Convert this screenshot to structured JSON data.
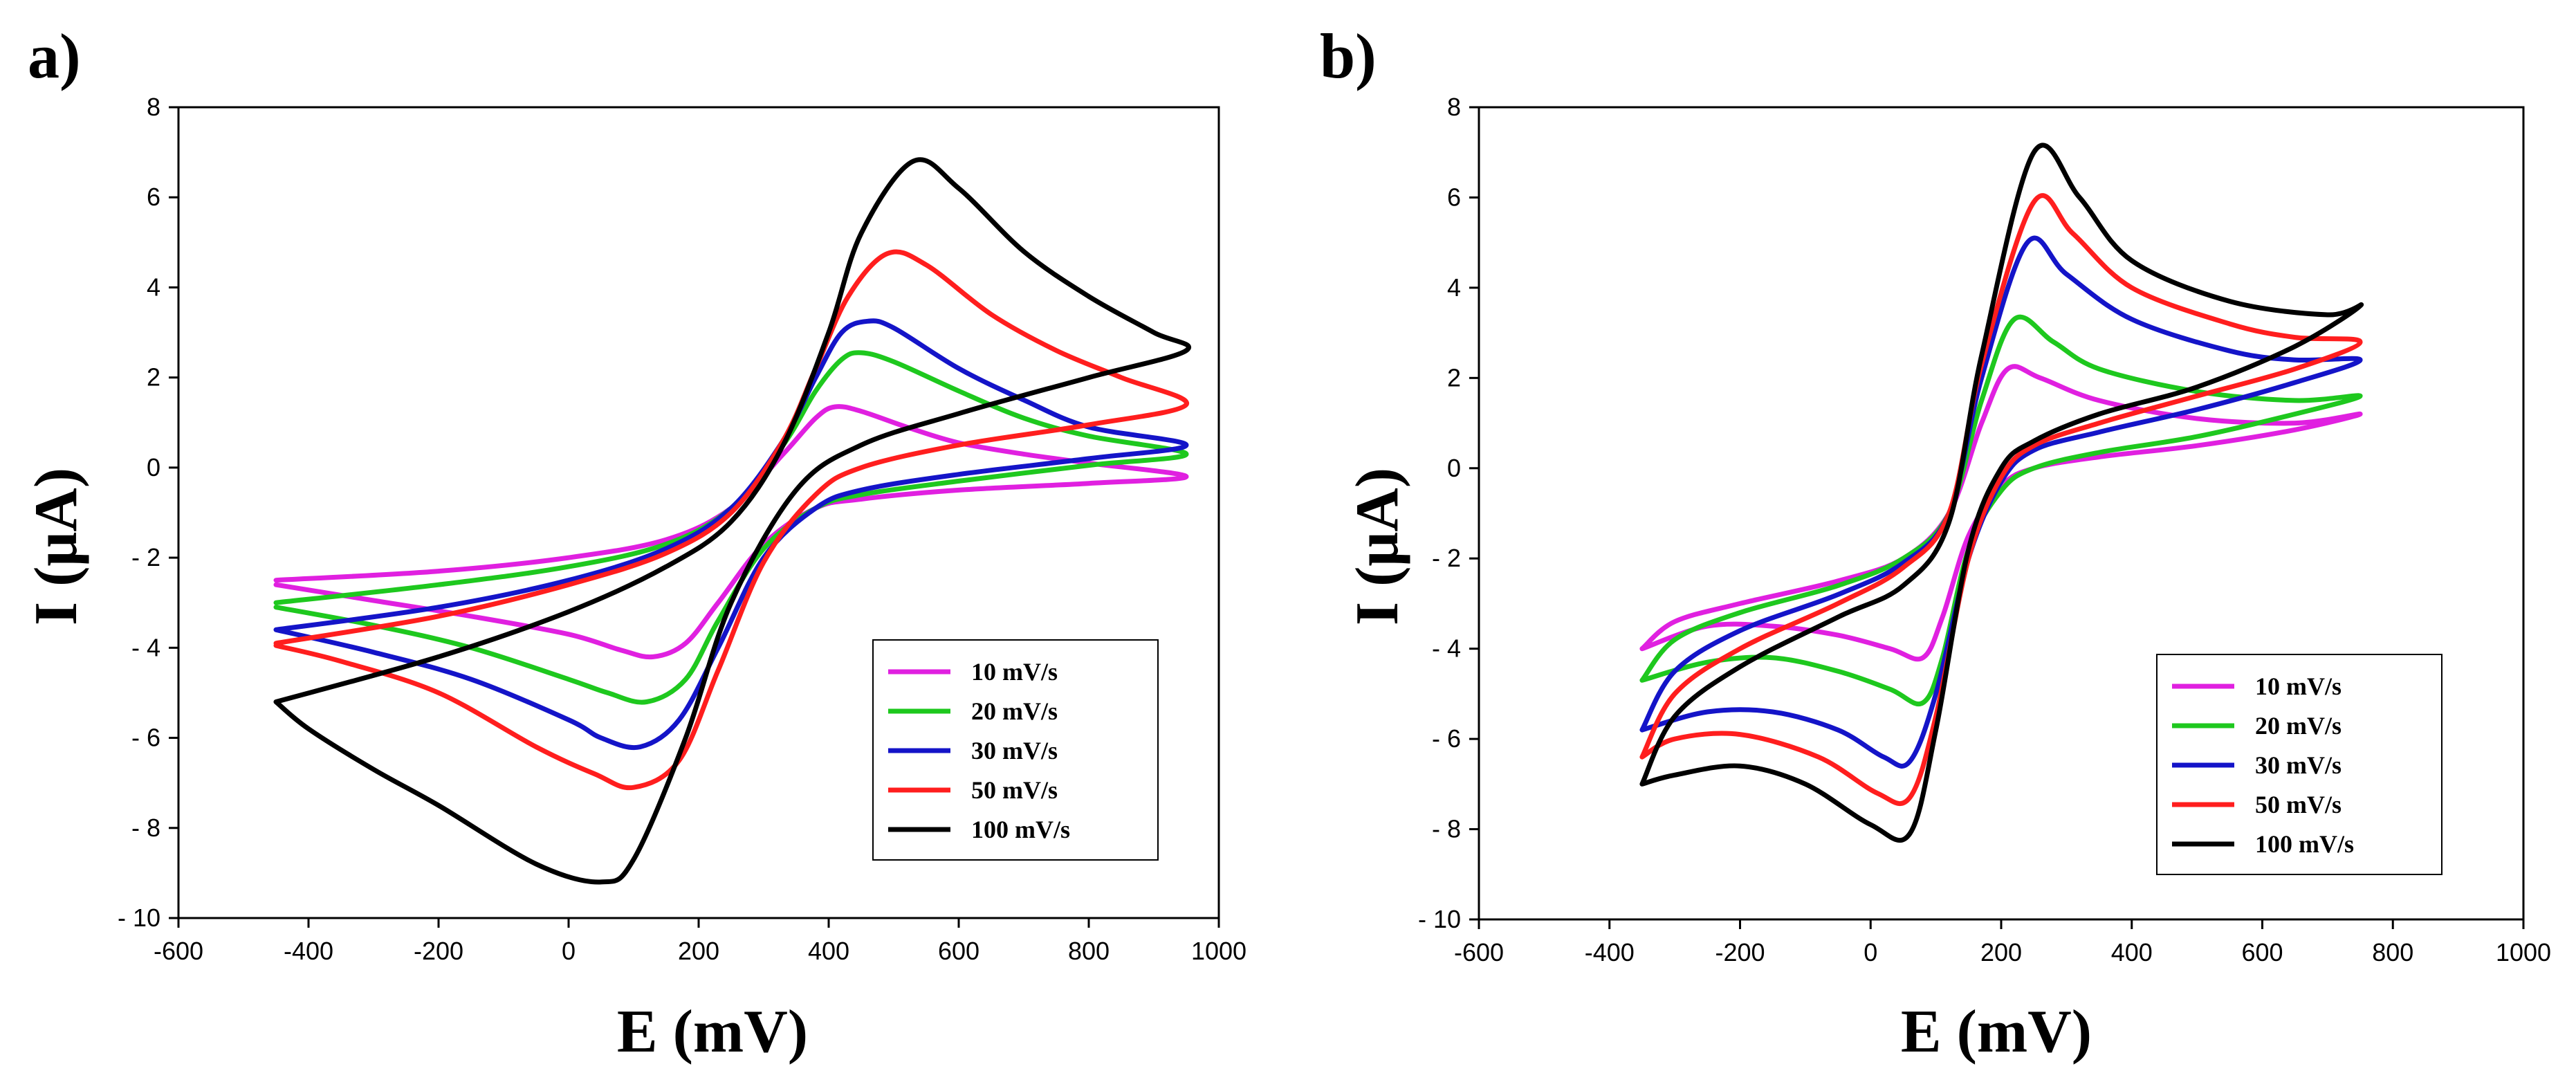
{
  "figure": {
    "panels": [
      "a)",
      "b)"
    ]
  },
  "chart_data": [
    {
      "panel_label": "a)",
      "type": "line",
      "title": "",
      "xlabel": "E (mV)",
      "ylabel": "I (μA)",
      "xlim": [
        -600,
        1000
      ],
      "ylim": [
        -10,
        8
      ],
      "xticks": [
        -600,
        -400,
        -200,
        0,
        200,
        400,
        600,
        800,
        1000
      ],
      "yticks": [
        -10,
        -8,
        -6,
        -4,
        -2,
        0,
        2,
        4,
        6,
        8
      ],
      "xtick_labels": [
        "-600",
        "-400",
        "-200",
        "0",
        "200",
        "400",
        "600",
        "800",
        "1000"
      ],
      "ytick_labels": [
        "- 10",
        "- 8",
        "- 6",
        "- 4",
        "- 2",
        "0",
        "2",
        "4",
        "6",
        "8"
      ],
      "grid": false,
      "legend_position": "bottom-right",
      "series": [
        {
          "name": "10 mV/s",
          "color": "#e020e0",
          "forward": {
            "x": [
              -450,
              -200,
              0,
              150,
              250,
              330,
              380,
              410,
              450,
              520,
              600,
              700,
              800,
              950
            ],
            "y": [
              -2.5,
              -2.3,
              -2.0,
              -1.6,
              -0.9,
              0.3,
              1.1,
              1.35,
              1.25,
              0.9,
              0.55,
              0.3,
              0.1,
              -0.2
            ]
          },
          "reverse": {
            "x": [
              950,
              800,
              600,
              450,
              380,
              300,
              230,
              180,
              130,
              80,
              0,
              -150,
              -300,
              -450
            ],
            "y": [
              -0.25,
              -0.35,
              -0.5,
              -0.7,
              -0.9,
              -1.7,
              -3.0,
              -3.9,
              -4.2,
              -4.05,
              -3.7,
              -3.3,
              -2.95,
              -2.6
            ]
          }
        },
        {
          "name": "20 mV/s",
          "color": "#1ec81e",
          "forward": {
            "x": [
              -450,
              -200,
              0,
              150,
              250,
              330,
              380,
              420,
              450,
              500,
              600,
              700,
              800,
              950
            ],
            "y": [
              -3.0,
              -2.6,
              -2.2,
              -1.7,
              -0.9,
              0.5,
              1.7,
              2.4,
              2.55,
              2.35,
              1.7,
              1.1,
              0.7,
              0.3
            ]
          },
          "reverse": {
            "x": [
              950,
              800,
              600,
              450,
              380,
              300,
              230,
              180,
              120,
              60,
              0,
              -150,
              -300,
              -450
            ],
            "y": [
              0.3,
              0.05,
              -0.3,
              -0.6,
              -0.9,
              -1.8,
              -3.4,
              -4.7,
              -5.2,
              -5.0,
              -4.7,
              -4.0,
              -3.5,
              -3.1
            ]
          }
        },
        {
          "name": "30 mV/s",
          "color": "#1414c8",
          "forward": {
            "x": [
              -450,
              -200,
              0,
              150,
              250,
              330,
              380,
              420,
              460,
              500,
              600,
              700,
              800,
              950
            ],
            "y": [
              -3.6,
              -3.1,
              -2.5,
              -1.8,
              -0.9,
              0.6,
              2.0,
              3.0,
              3.25,
              3.1,
              2.2,
              1.5,
              0.9,
              0.5
            ]
          },
          "reverse": {
            "x": [
              950,
              800,
              600,
              450,
              380,
              300,
              230,
              170,
              110,
              50,
              0,
              -150,
              -300,
              -450
            ],
            "y": [
              0.5,
              0.2,
              -0.15,
              -0.5,
              -0.9,
              -2.0,
              -4.0,
              -5.6,
              -6.2,
              -6.0,
              -5.6,
              -4.7,
              -4.1,
              -3.6
            ]
          }
        },
        {
          "name": "50 mV/s",
          "color": "#ff1e1e",
          "forward": {
            "x": [
              -450,
              -200,
              0,
              150,
              250,
              330,
              380,
              430,
              490,
              550,
              650,
              750,
              850,
              950
            ],
            "y": [
              -3.9,
              -3.3,
              -2.6,
              -1.9,
              -1.0,
              0.6,
              2.2,
              3.8,
              4.75,
              4.5,
              3.4,
              2.6,
              2.0,
              1.4
            ]
          },
          "reverse": {
            "x": [
              950,
              800,
              600,
              450,
              380,
              300,
              230,
              170,
              100,
              40,
              -50,
              -200,
              -350,
              -450
            ],
            "y": [
              1.4,
              0.95,
              0.5,
              0.0,
              -0.6,
              -2.1,
              -4.5,
              -6.5,
              -7.1,
              -6.8,
              -6.2,
              -5.0,
              -4.3,
              -3.95
            ]
          }
        },
        {
          "name": "100 mV/s",
          "color": "#000000",
          "forward": {
            "x": [
              -450,
              -200,
              0,
              150,
              250,
              330,
              400,
              450,
              530,
              600,
              700,
              800,
              900,
              950
            ],
            "y": [
              -5.2,
              -4.2,
              -3.2,
              -2.2,
              -1.2,
              0.5,
              3.0,
              5.2,
              6.8,
              6.2,
              4.8,
              3.8,
              3.0,
              2.6
            ]
          },
          "reverse": {
            "x": [
              950,
              800,
              600,
              450,
              350,
              250,
              180,
              100,
              50,
              -50,
              -200,
              -300,
              -400,
              -450
            ],
            "y": [
              2.6,
              2.0,
              1.2,
              0.5,
              -0.5,
              -3.0,
              -6.0,
              -8.7,
              -9.2,
              -8.8,
              -7.5,
              -6.7,
              -5.8,
              -5.2
            ]
          }
        }
      ]
    },
    {
      "panel_label": "b)",
      "type": "line",
      "title": "",
      "xlabel": "E (mV)",
      "ylabel": "I (μA)",
      "xlim": [
        -600,
        1000
      ],
      "ylim": [
        -10,
        8
      ],
      "xticks": [
        -600,
        -400,
        -200,
        0,
        200,
        400,
        600,
        800,
        1000
      ],
      "yticks": [
        -10,
        -8,
        -6,
        -4,
        -2,
        0,
        2,
        4,
        6,
        8
      ],
      "xtick_labels": [
        "-600",
        "-400",
        "-200",
        "0",
        "200",
        "400",
        "600",
        "800",
        "1000"
      ],
      "ytick_labels": [
        "- 10",
        "- 8",
        "- 6",
        "- 4",
        "- 2",
        "0",
        "2",
        "4",
        "6",
        "8"
      ],
      "grid": false,
      "legend_position": "bottom-right",
      "series": [
        {
          "name": "10 mV/s",
          "color": "#e020e0",
          "forward": {
            "x": [
              -350,
              -300,
              -200,
              -50,
              50,
              120,
              170,
              210,
              260,
              350,
              500,
              650,
              750
            ],
            "y": [
              -4.0,
              -3.4,
              -3.0,
              -2.5,
              -2.0,
              -1.0,
              1.0,
              2.2,
              2.0,
              1.5,
              1.1,
              1.0,
              1.2
            ]
          },
          "reverse": {
            "x": [
              750,
              650,
              500,
              350,
              250,
              200,
              150,
              110,
              80,
              30,
              -50,
              -150,
              -250,
              -350
            ],
            "y": [
              1.2,
              0.85,
              0.5,
              0.25,
              0.0,
              -0.4,
              -1.5,
              -3.3,
              -4.2,
              -4.0,
              -3.7,
              -3.5,
              -3.5,
              -4.0
            ]
          }
        },
        {
          "name": "20 mV/s",
          "color": "#1ec81e",
          "forward": {
            "x": [
              -350,
              -300,
              -200,
              -50,
              50,
              120,
              170,
              220,
              280,
              350,
              500,
              650,
              750
            ],
            "y": [
              -4.7,
              -3.8,
              -3.2,
              -2.6,
              -2.0,
              -1.0,
              1.5,
              3.3,
              2.8,
              2.2,
              1.7,
              1.5,
              1.6
            ]
          },
          "reverse": {
            "x": [
              750,
              650,
              500,
              350,
              250,
              200,
              150,
              110,
              80,
              30,
              -50,
              -150,
              -250,
              -350
            ],
            "y": [
              1.6,
              1.2,
              0.7,
              0.35,
              0.0,
              -0.5,
              -1.8,
              -4.2,
              -5.2,
              -4.9,
              -4.5,
              -4.2,
              -4.3,
              -4.7
            ]
          }
        },
        {
          "name": "30 mV/s",
          "color": "#1414c8",
          "forward": {
            "x": [
              -350,
              -300,
              -200,
              -50,
              50,
              120,
              170,
              240,
              300,
              400,
              550,
              650,
              750
            ],
            "y": [
              -5.8,
              -4.5,
              -3.6,
              -2.8,
              -2.1,
              -1.0,
              2.0,
              5.0,
              4.3,
              3.3,
              2.6,
              2.4,
              2.4
            ]
          },
          "reverse": {
            "x": [
              750,
              650,
              500,
              350,
              250,
              200,
              150,
              100,
              60,
              20,
              -50,
              -150,
              -250,
              -350
            ],
            "y": [
              2.4,
              1.9,
              1.3,
              0.8,
              0.4,
              -0.3,
              -2.0,
              -5.0,
              -6.5,
              -6.4,
              -5.8,
              -5.4,
              -5.4,
              -5.8
            ]
          }
        },
        {
          "name": "50 mV/s",
          "color": "#ff1e1e",
          "forward": {
            "x": [
              -350,
              -300,
              -200,
              -50,
              50,
              120,
              170,
              250,
              310,
              400,
              550,
              650,
              750
            ],
            "y": [
              -6.4,
              -5.0,
              -4.0,
              -3.0,
              -2.2,
              -1.0,
              2.3,
              5.9,
              5.2,
              4.0,
              3.2,
              2.9,
              2.8
            ]
          },
          "reverse": {
            "x": [
              750,
              650,
              500,
              350,
              250,
              200,
              150,
              100,
              60,
              10,
              -80,
              -200,
              -300,
              -350
            ],
            "y": [
              2.8,
              2.2,
              1.6,
              1.0,
              0.5,
              -0.2,
              -2.0,
              -5.5,
              -7.3,
              -7.2,
              -6.4,
              -5.9,
              -6.0,
              -6.4
            ]
          }
        },
        {
          "name": "100 mV/s",
          "color": "#000000",
          "forward": {
            "x": [
              -350,
              -300,
              -200,
              -50,
              50,
              120,
              170,
              250,
              320,
              400,
              550,
              700,
              750
            ],
            "y": [
              -7.0,
              -5.5,
              -4.4,
              -3.3,
              -2.6,
              -1.2,
              2.5,
              7.0,
              6.0,
              4.6,
              3.7,
              3.4,
              3.6
            ]
          },
          "reverse": {
            "x": [
              750,
              650,
              500,
              350,
              250,
              200,
              150,
              100,
              60,
              0,
              -100,
              -200,
              -300,
              -350
            ],
            "y": [
              3.6,
              2.7,
              1.8,
              1.2,
              0.6,
              0.0,
              -1.8,
              -5.8,
              -8.1,
              -7.9,
              -7.0,
              -6.6,
              -6.8,
              -7.0
            ]
          }
        }
      ]
    }
  ]
}
